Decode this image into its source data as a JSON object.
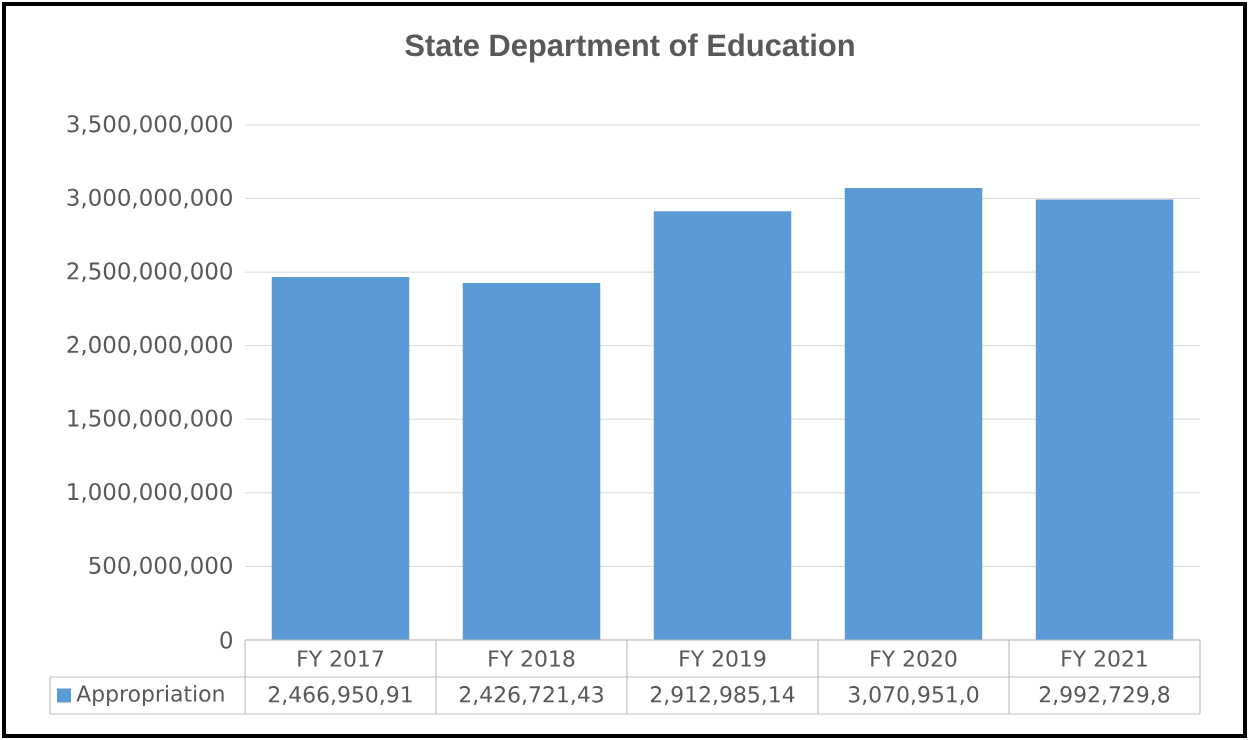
{
  "chart_data": {
    "type": "bar",
    "title": "State Department of Education",
    "categories": [
      "FY 2017",
      "FY 2018",
      "FY 2019",
      "FY 2020",
      "FY 2021"
    ],
    "series": [
      {
        "name": "Appropriation",
        "color": "#5b9bd5",
        "values": [
          2466950910,
          2426721430,
          2912985140,
          3070951000,
          2992729800
        ],
        "value_labels": [
          "2,466,950,91",
          "2,426,721,43",
          "2,912,985,14",
          "3,070,951,0",
          "2,992,729,8"
        ]
      }
    ],
    "ylim": [
      0,
      3500000000
    ],
    "yticks": [
      {
        "value": 0,
        "label": "0"
      },
      {
        "value": 500000000,
        "label": "500,000,000"
      },
      {
        "value": 1000000000,
        "label": "1,000,000,000"
      },
      {
        "value": 1500000000,
        "label": "1,500,000,000"
      },
      {
        "value": 2000000000,
        "label": "2,000,000,000"
      },
      {
        "value": 2500000000,
        "label": "2,500,000,000"
      },
      {
        "value": 3000000000,
        "label": "3,000,000,000"
      },
      {
        "value": 3500000000,
        "label": "3,500,000,000"
      }
    ],
    "grid": "y",
    "legend": "bottom"
  }
}
